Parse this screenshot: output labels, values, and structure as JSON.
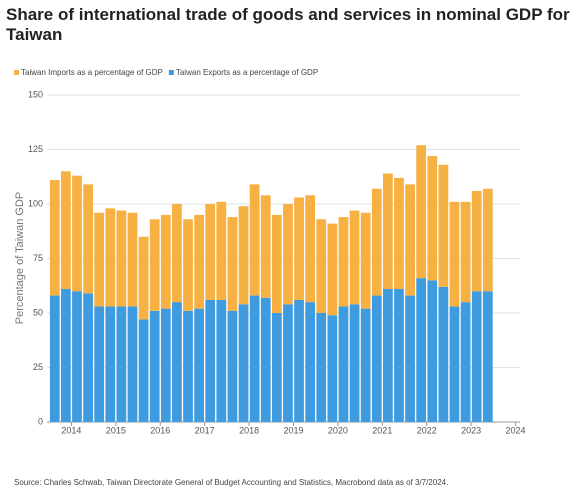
{
  "chart_data": {
    "type": "stacked_bar",
    "title": "Share of international trade of goods and services in nominal GDP for Taiwan",
    "y_label": "Percentage of Taiwan GDP",
    "source": "Source: Charles Schwab, Taiwan Directorate General of Budget Accounting and Statistics, Macrobond data as of 3/7/2024.",
    "x": [
      2013.625,
      2013.875,
      2014.125,
      2014.375,
      2014.625,
      2014.875,
      2015.125,
      2015.375,
      2015.625,
      2015.875,
      2016.125,
      2016.375,
      2016.625,
      2016.875,
      2017.125,
      2017.375,
      2017.625,
      2017.875,
      2018.125,
      2018.375,
      2018.625,
      2018.875,
      2019.125,
      2019.375,
      2019.625,
      2019.875,
      2020.125,
      2020.375,
      2020.625,
      2020.875,
      2021.125,
      2021.375,
      2021.625,
      2021.875,
      2022.125,
      2022.375,
      2022.625,
      2022.875,
      2023.125,
      2023.375
    ],
    "series": [
      {
        "name": "Taiwan Imports as a percentage of GDP",
        "color": "#f6b142",
        "values": [
          53,
          54,
          53,
          50,
          43,
          45,
          44,
          43,
          38,
          42,
          43,
          45,
          42,
          43,
          44,
          45,
          43,
          45,
          51,
          47,
          45,
          46,
          47,
          49,
          43,
          42,
          41,
          43,
          44,
          49,
          53,
          51,
          51,
          61,
          57,
          56,
          48,
          46,
          46,
          47
        ]
      },
      {
        "name": "Taiwan Exports as a percentage of GDP",
        "color": "#3f9be0",
        "values": [
          58,
          61,
          60,
          59,
          53,
          53,
          53,
          53,
          47,
          51,
          52,
          55,
          51,
          52,
          56,
          56,
          51,
          54,
          58,
          57,
          50,
          54,
          56,
          55,
          50,
          49,
          53,
          54,
          52,
          58,
          61,
          61,
          58,
          66,
          65,
          62,
          53,
          55,
          60,
          60
        ]
      }
    ],
    "xlim": [
      2013.45,
      2024.1
    ],
    "xticks": [
      2014,
      2015,
      2016,
      2017,
      2018,
      2019,
      2020,
      2021,
      2022,
      2023,
      2024
    ],
    "ylim": [
      0,
      150
    ],
    "yticks": [
      0,
      25,
      50,
      75,
      100,
      125,
      150
    ],
    "grid": true
  }
}
